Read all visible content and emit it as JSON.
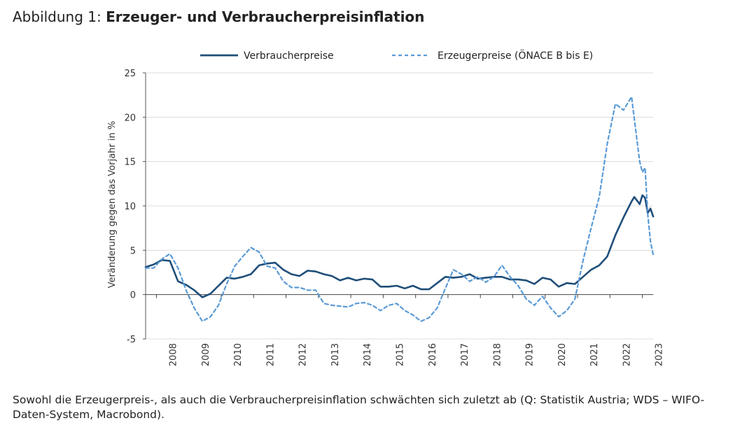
{
  "header": {
    "prefix": "Abbildung 1: ",
    "title": "Erzeuger- und Verbraucherpreisinflation"
  },
  "caption": "Sowohl die Erzeugerpreis-, als auch die Verbraucherpreisinflation schwächten sich zuletzt ab (Q: Statistik Austria; WDS – WIFO-Daten-System, Macrobond).",
  "colors": {
    "cpi": "#1f4e79",
    "ppi": "#5b9bd5"
  },
  "chart_data": {
    "type": "line",
    "ylabel": "Veränderung gegen das Vorjahr in %",
    "ylim": [
      -5,
      25
    ],
    "yticks": [
      -5,
      0,
      5,
      10,
      15,
      20,
      25
    ],
    "xlim": [
      "2007-09",
      "2023-05"
    ],
    "xtick_labels": [
      "2008",
      "2009",
      "2010",
      "2011",
      "2012",
      "2013",
      "2014",
      "2015",
      "2016",
      "2017",
      "2018",
      "2019",
      "2020",
      "2021",
      "2022",
      "2023"
    ],
    "legend_position": "top",
    "grid": "horizontal",
    "series": [
      {
        "name": "Verbraucherpreise",
        "style": "solid",
        "points": [
          [
            "2007-09",
            3.1
          ],
          [
            "2007-12",
            3.4
          ],
          [
            "2008-03",
            3.9
          ],
          [
            "2008-06",
            3.8
          ],
          [
            "2008-09",
            1.5
          ],
          [
            "2008-12",
            1.1
          ],
          [
            "2009-03",
            0.5
          ],
          [
            "2009-06",
            -0.3
          ],
          [
            "2009-09",
            0.1
          ],
          [
            "2009-12",
            1.0
          ],
          [
            "2010-03",
            1.9
          ],
          [
            "2010-06",
            1.8
          ],
          [
            "2010-09",
            2.0
          ],
          [
            "2010-12",
            2.3
          ],
          [
            "2011-03",
            3.3
          ],
          [
            "2011-06",
            3.5
          ],
          [
            "2011-09",
            3.6
          ],
          [
            "2011-12",
            2.8
          ],
          [
            "2012-03",
            2.3
          ],
          [
            "2012-06",
            2.1
          ],
          [
            "2012-09",
            2.7
          ],
          [
            "2012-12",
            2.6
          ],
          [
            "2013-03",
            2.3
          ],
          [
            "2013-06",
            2.1
          ],
          [
            "2013-09",
            1.6
          ],
          [
            "2013-12",
            1.9
          ],
          [
            "2014-03",
            1.6
          ],
          [
            "2014-06",
            1.8
          ],
          [
            "2014-09",
            1.7
          ],
          [
            "2014-12",
            0.9
          ],
          [
            "2015-03",
            0.9
          ],
          [
            "2015-06",
            1.0
          ],
          [
            "2015-09",
            0.7
          ],
          [
            "2015-12",
            1.0
          ],
          [
            "2016-03",
            0.6
          ],
          [
            "2016-06",
            0.6
          ],
          [
            "2016-09",
            1.3
          ],
          [
            "2016-12",
            2.0
          ],
          [
            "2017-03",
            1.9
          ],
          [
            "2017-06",
            2.0
          ],
          [
            "2017-09",
            2.3
          ],
          [
            "2017-12",
            1.8
          ],
          [
            "2018-03",
            1.9
          ],
          [
            "2018-06",
            2.0
          ],
          [
            "2018-09",
            2.0
          ],
          [
            "2018-12",
            1.7
          ],
          [
            "2019-03",
            1.7
          ],
          [
            "2019-06",
            1.6
          ],
          [
            "2019-09",
            1.2
          ],
          [
            "2019-12",
            1.9
          ],
          [
            "2020-03",
            1.7
          ],
          [
            "2020-06",
            0.9
          ],
          [
            "2020-09",
            1.3
          ],
          [
            "2020-12",
            1.2
          ],
          [
            "2021-03",
            2.0
          ],
          [
            "2021-06",
            2.8
          ],
          [
            "2021-09",
            3.3
          ],
          [
            "2021-12",
            4.3
          ],
          [
            "2022-03",
            6.7
          ],
          [
            "2022-06",
            8.7
          ],
          [
            "2022-09",
            10.5
          ],
          [
            "2022-10",
            11.0
          ],
          [
            "2022-11",
            10.6
          ],
          [
            "2022-12",
            10.2
          ],
          [
            "2023-01",
            11.2
          ],
          [
            "2023-02",
            10.9
          ],
          [
            "2023-03",
            9.2
          ],
          [
            "2023-04",
            9.7
          ],
          [
            "2023-05",
            8.8
          ]
        ]
      },
      {
        "name": "Erzeugerpreise (ÖNACE B bis E)",
        "style": "dashed",
        "points": [
          [
            "2007-09",
            3.0
          ],
          [
            "2007-12",
            3.0
          ],
          [
            "2008-03",
            4.0
          ],
          [
            "2008-06",
            4.6
          ],
          [
            "2008-09",
            3.0
          ],
          [
            "2008-12",
            0.5
          ],
          [
            "2009-03",
            -1.5
          ],
          [
            "2009-06",
            -3.0
          ],
          [
            "2009-09",
            -2.5
          ],
          [
            "2009-12",
            -1.2
          ],
          [
            "2010-03",
            1.2
          ],
          [
            "2010-06",
            3.2
          ],
          [
            "2010-09",
            4.3
          ],
          [
            "2010-12",
            5.3
          ],
          [
            "2011-03",
            4.8
          ],
          [
            "2011-06",
            3.2
          ],
          [
            "2011-09",
            3.0
          ],
          [
            "2011-12",
            1.5
          ],
          [
            "2012-03",
            0.8
          ],
          [
            "2012-06",
            0.8
          ],
          [
            "2012-09",
            0.5
          ],
          [
            "2012-12",
            0.5
          ],
          [
            "2013-03",
            -1.0
          ],
          [
            "2013-06",
            -1.2
          ],
          [
            "2013-09",
            -1.3
          ],
          [
            "2013-12",
            -1.4
          ],
          [
            "2014-03",
            -1.0
          ],
          [
            "2014-06",
            -0.9
          ],
          [
            "2014-09",
            -1.2
          ],
          [
            "2014-12",
            -1.8
          ],
          [
            "2015-03",
            -1.2
          ],
          [
            "2015-06",
            -1.0
          ],
          [
            "2015-09",
            -1.8
          ],
          [
            "2015-12",
            -2.3
          ],
          [
            "2016-03",
            -3.0
          ],
          [
            "2016-06",
            -2.6
          ],
          [
            "2016-09",
            -1.5
          ],
          [
            "2016-12",
            0.7
          ],
          [
            "2017-03",
            2.8
          ],
          [
            "2017-06",
            2.3
          ],
          [
            "2017-09",
            1.5
          ],
          [
            "2017-12",
            2.0
          ],
          [
            "2018-03",
            1.4
          ],
          [
            "2018-06",
            2.0
          ],
          [
            "2018-09",
            3.3
          ],
          [
            "2018-12",
            2.0
          ],
          [
            "2019-03",
            1.0
          ],
          [
            "2019-06",
            -0.5
          ],
          [
            "2019-09",
            -1.2
          ],
          [
            "2019-12",
            -0.2
          ],
          [
            "2020-03",
            -1.5
          ],
          [
            "2020-06",
            -2.5
          ],
          [
            "2020-09",
            -1.8
          ],
          [
            "2020-12",
            -0.5
          ],
          [
            "2021-03",
            3.8
          ],
          [
            "2021-06",
            7.5
          ],
          [
            "2021-09",
            11.0
          ],
          [
            "2021-12",
            17.0
          ],
          [
            "2022-03",
            21.5
          ],
          [
            "2022-06",
            20.8
          ],
          [
            "2022-09",
            22.3
          ],
          [
            "2022-12",
            15.0
          ],
          [
            "2023-01",
            13.8
          ],
          [
            "2023-02",
            14.3
          ],
          [
            "2023-03",
            9.0
          ],
          [
            "2023-04",
            6.0
          ],
          [
            "2023-05",
            4.5
          ]
        ]
      }
    ]
  }
}
